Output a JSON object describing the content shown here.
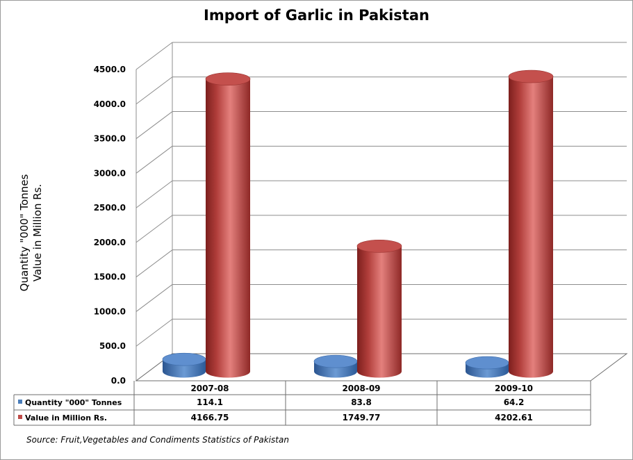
{
  "chart_data": {
    "type": "bar",
    "title": "Import of Garlic in Pakistan",
    "ylabel_lines": [
      "Quantity \"000\" Tonnes",
      "Value in Million Rs."
    ],
    "categories": [
      "2007-08",
      "2008-09",
      "2009-10"
    ],
    "ylim": [
      0,
      4500
    ],
    "yticks": [
      "0.0",
      "500.0",
      "1000.0",
      "1500.0",
      "2000.0",
      "2500.0",
      "3000.0",
      "3500.0",
      "4000.0",
      "4500.0"
    ],
    "series": [
      {
        "name": "Quantity \"000\" Tonnes",
        "values": [
          114.1,
          83.8,
          64.2
        ],
        "labels": [
          "114.1",
          "83.8",
          "64.2"
        ],
        "color": "#4a7ebb"
      },
      {
        "name": "Value in Million Rs.",
        "values": [
          4166.75,
          1749.77,
          4202.61
        ],
        "labels": [
          "4166.75",
          "1749.77",
          "4202.61"
        ],
        "color": "#be4b48"
      }
    ],
    "grid": true,
    "legend": "data-table",
    "source": "Source: Fruit,Vegetables and Condiments Statistics of Pakistan"
  }
}
